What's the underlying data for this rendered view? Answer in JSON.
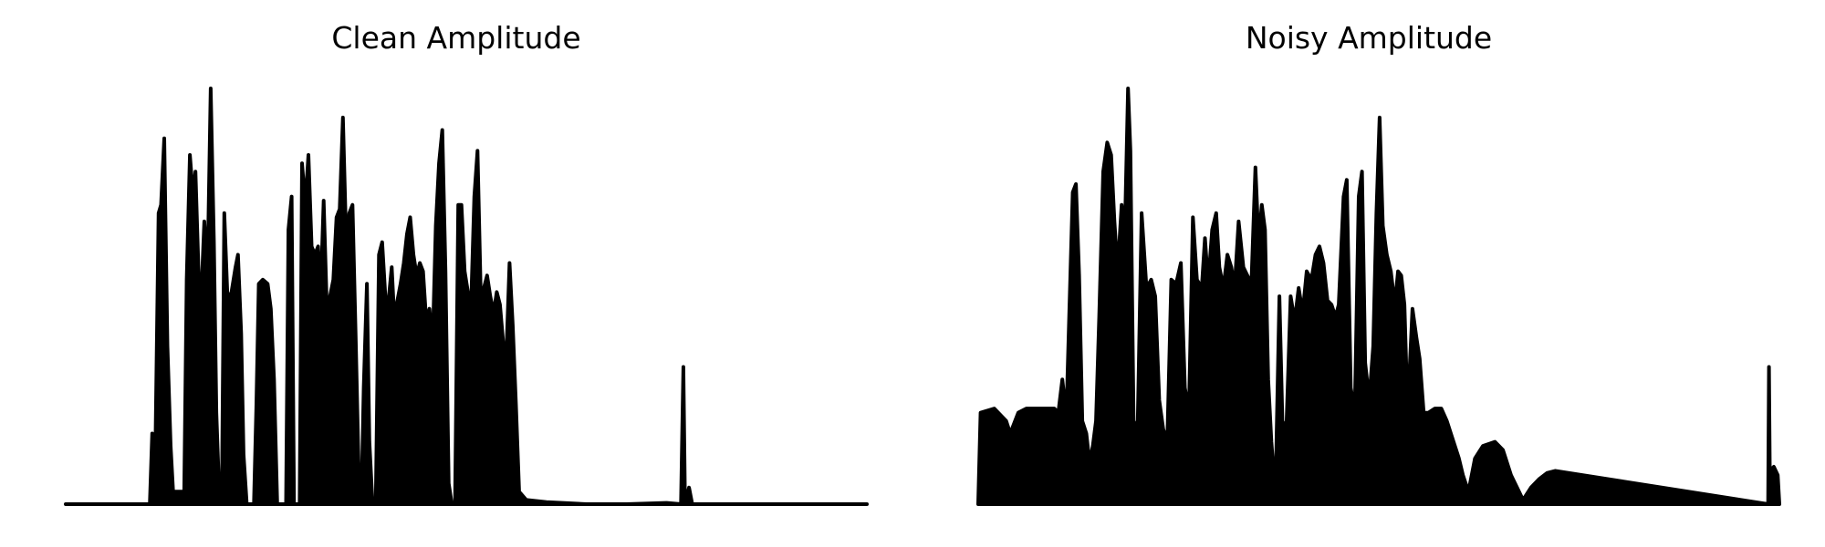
{
  "charts": [
    {
      "title": "Clean Amplitude",
      "chart_data": {
        "type": "area",
        "title": "Clean Amplitude",
        "xlabel": "",
        "ylabel": "",
        "axes_visible": false,
        "grid": false,
        "color": "#000000",
        "x_range": [
          0,
          1
        ],
        "y_range": [
          0,
          1
        ],
        "points": [
          [
            0.0,
            0.0
          ],
          [
            0.105,
            0.0
          ],
          [
            0.108,
            0.17
          ],
          [
            0.111,
            0.0
          ],
          [
            0.116,
            0.7
          ],
          [
            0.119,
            0.72
          ],
          [
            0.123,
            0.88
          ],
          [
            0.127,
            0.38
          ],
          [
            0.131,
            0.14
          ],
          [
            0.134,
            0.03
          ],
          [
            0.148,
            0.03
          ],
          [
            0.151,
            0.54
          ],
          [
            0.155,
            0.84
          ],
          [
            0.159,
            0.74
          ],
          [
            0.162,
            0.8
          ],
          [
            0.166,
            0.55
          ],
          [
            0.17,
            0.54
          ],
          [
            0.173,
            0.68
          ],
          [
            0.177,
            0.55
          ],
          [
            0.181,
            1.0
          ],
          [
            0.185,
            0.63
          ],
          [
            0.188,
            0.22
          ],
          [
            0.192,
            0.0
          ],
          [
            0.195,
            0.03
          ],
          [
            0.198,
            0.7
          ],
          [
            0.202,
            0.49
          ],
          [
            0.207,
            0.51
          ],
          [
            0.212,
            0.57
          ],
          [
            0.215,
            0.6
          ],
          [
            0.219,
            0.41
          ],
          [
            0.222,
            0.12
          ],
          [
            0.226,
            0.0
          ],
          [
            0.235,
            0.0
          ],
          [
            0.238,
            0.24
          ],
          [
            0.241,
            0.53
          ],
          [
            0.246,
            0.54
          ],
          [
            0.252,
            0.53
          ],
          [
            0.256,
            0.47
          ],
          [
            0.26,
            0.3
          ],
          [
            0.264,
            0.0
          ],
          [
            0.275,
            0.0
          ],
          [
            0.278,
            0.66
          ],
          [
            0.282,
            0.74
          ],
          [
            0.285,
            0.0
          ],
          [
            0.292,
            0.0
          ],
          [
            0.295,
            0.82
          ],
          [
            0.299,
            0.72
          ],
          [
            0.303,
            0.84
          ],
          [
            0.307,
            0.62
          ],
          [
            0.311,
            0.6
          ],
          [
            0.315,
            0.62
          ],
          [
            0.318,
            0.49
          ],
          [
            0.322,
            0.73
          ],
          [
            0.326,
            0.47
          ],
          [
            0.33,
            0.5
          ],
          [
            0.334,
            0.54
          ],
          [
            0.338,
            0.69
          ],
          [
            0.342,
            0.71
          ],
          [
            0.346,
            0.93
          ],
          [
            0.35,
            0.64
          ],
          [
            0.354,
            0.7
          ],
          [
            0.358,
            0.72
          ],
          [
            0.362,
            0.4
          ],
          [
            0.366,
            0.06
          ],
          [
            0.369,
            0.0
          ],
          [
            0.372,
            0.28
          ],
          [
            0.376,
            0.53
          ],
          [
            0.379,
            0.15
          ],
          [
            0.383,
            0.0
          ],
          [
            0.387,
            0.0
          ],
          [
            0.391,
            0.6
          ],
          [
            0.395,
            0.63
          ],
          [
            0.399,
            0.5
          ],
          [
            0.403,
            0.49
          ],
          [
            0.407,
            0.57
          ],
          [
            0.41,
            0.45
          ],
          [
            0.414,
            0.49
          ],
          [
            0.418,
            0.53
          ],
          [
            0.422,
            0.58
          ],
          [
            0.426,
            0.65
          ],
          [
            0.43,
            0.69
          ],
          [
            0.434,
            0.6
          ],
          [
            0.438,
            0.55
          ],
          [
            0.442,
            0.58
          ],
          [
            0.446,
            0.56
          ],
          [
            0.45,
            0.44
          ],
          [
            0.454,
            0.47
          ],
          [
            0.458,
            0.38
          ],
          [
            0.462,
            0.67
          ],
          [
            0.466,
            0.82
          ],
          [
            0.47,
            0.9
          ],
          [
            0.474,
            0.56
          ],
          [
            0.478,
            0.05
          ],
          [
            0.482,
            0.0
          ],
          [
            0.486,
            0.0
          ],
          [
            0.49,
            0.72
          ],
          [
            0.494,
            0.72
          ],
          [
            0.498,
            0.56
          ],
          [
            0.502,
            0.51
          ],
          [
            0.506,
            0.48
          ],
          [
            0.51,
            0.74
          ],
          [
            0.514,
            0.85
          ],
          [
            0.518,
            0.51
          ],
          [
            0.522,
            0.52
          ],
          [
            0.526,
            0.55
          ],
          [
            0.53,
            0.5
          ],
          [
            0.534,
            0.46
          ],
          [
            0.538,
            0.51
          ],
          [
            0.542,
            0.48
          ],
          [
            0.546,
            0.39
          ],
          [
            0.55,
            0.36
          ],
          [
            0.554,
            0.58
          ],
          [
            0.558,
            0.43
          ],
          [
            0.562,
            0.24
          ],
          [
            0.566,
            0.03
          ],
          [
            0.575,
            0.01
          ],
          [
            0.6,
            0.005
          ],
          [
            0.65,
            0.0
          ],
          [
            0.7,
            0.0
          ],
          [
            0.75,
            0.003
          ],
          [
            0.768,
            0.0
          ],
          [
            0.771,
            0.33
          ],
          [
            0.773,
            0.0
          ],
          [
            0.778,
            0.04
          ],
          [
            0.782,
            0.0
          ],
          [
            1.0,
            0.0
          ]
        ]
      }
    },
    {
      "title": "Noisy Amplitude",
      "chart_data": {
        "type": "area",
        "title": "Noisy Amplitude",
        "xlabel": "",
        "ylabel": "",
        "axes_visible": false,
        "grid": false,
        "color": "#000000",
        "x_range": [
          0,
          1
        ],
        "y_range": [
          0,
          1
        ],
        "points": [
          [
            0.0,
            0.0
          ],
          [
            0.003,
            0.22
          ],
          [
            0.02,
            0.23
          ],
          [
            0.035,
            0.2
          ],
          [
            0.04,
            0.17
          ],
          [
            0.05,
            0.22
          ],
          [
            0.06,
            0.23
          ],
          [
            0.095,
            0.23
          ],
          [
            0.1,
            0.22
          ],
          [
            0.105,
            0.3
          ],
          [
            0.11,
            0.21
          ],
          [
            0.118,
            0.75
          ],
          [
            0.122,
            0.77
          ],
          [
            0.126,
            0.55
          ],
          [
            0.13,
            0.2
          ],
          [
            0.135,
            0.17
          ],
          [
            0.139,
            0.1
          ],
          [
            0.143,
            0.14
          ],
          [
            0.147,
            0.2
          ],
          [
            0.151,
            0.45
          ],
          [
            0.156,
            0.8
          ],
          [
            0.161,
            0.87
          ],
          [
            0.166,
            0.84
          ],
          [
            0.17,
            0.68
          ],
          [
            0.174,
            0.56
          ],
          [
            0.179,
            0.72
          ],
          [
            0.183,
            0.65
          ],
          [
            0.187,
            1.0
          ],
          [
            0.19,
            0.85
          ],
          [
            0.194,
            0.2
          ],
          [
            0.199,
            0.18
          ],
          [
            0.204,
            0.7
          ],
          [
            0.21,
            0.52
          ],
          [
            0.216,
            0.54
          ],
          [
            0.221,
            0.5
          ],
          [
            0.226,
            0.25
          ],
          [
            0.231,
            0.18
          ],
          [
            0.236,
            0.15
          ],
          [
            0.241,
            0.54
          ],
          [
            0.247,
            0.53
          ],
          [
            0.253,
            0.58
          ],
          [
            0.258,
            0.28
          ],
          [
            0.263,
            0.22
          ],
          [
            0.268,
            0.69
          ],
          [
            0.273,
            0.54
          ],
          [
            0.279,
            0.52
          ],
          [
            0.283,
            0.64
          ],
          [
            0.287,
            0.53
          ],
          [
            0.292,
            0.66
          ],
          [
            0.297,
            0.7
          ],
          [
            0.301,
            0.57
          ],
          [
            0.306,
            0.52
          ],
          [
            0.311,
            0.6
          ],
          [
            0.316,
            0.57
          ],
          [
            0.32,
            0.52
          ],
          [
            0.325,
            0.68
          ],
          [
            0.331,
            0.57
          ],
          [
            0.336,
            0.55
          ],
          [
            0.341,
            0.53
          ],
          [
            0.346,
            0.81
          ],
          [
            0.35,
            0.63
          ],
          [
            0.354,
            0.72
          ],
          [
            0.358,
            0.66
          ],
          [
            0.362,
            0.3
          ],
          [
            0.366,
            0.15
          ],
          [
            0.371,
            0.02
          ],
          [
            0.376,
            0.5
          ],
          [
            0.38,
            0.18
          ],
          [
            0.385,
            0.2
          ],
          [
            0.39,
            0.5
          ],
          [
            0.395,
            0.44
          ],
          [
            0.4,
            0.52
          ],
          [
            0.405,
            0.46
          ],
          [
            0.41,
            0.56
          ],
          [
            0.416,
            0.54
          ],
          [
            0.421,
            0.6
          ],
          [
            0.426,
            0.62
          ],
          [
            0.431,
            0.58
          ],
          [
            0.436,
            0.49
          ],
          [
            0.441,
            0.48
          ],
          [
            0.446,
            0.45
          ],
          [
            0.45,
            0.48
          ],
          [
            0.456,
            0.74
          ],
          [
            0.46,
            0.78
          ],
          [
            0.465,
            0.28
          ],
          [
            0.47,
            0.22
          ],
          [
            0.475,
            0.74
          ],
          [
            0.479,
            0.8
          ],
          [
            0.483,
            0.34
          ],
          [
            0.488,
            0.25
          ],
          [
            0.493,
            0.38
          ],
          [
            0.497,
            0.7
          ],
          [
            0.501,
            0.93
          ],
          [
            0.505,
            0.67
          ],
          [
            0.51,
            0.6
          ],
          [
            0.515,
            0.56
          ],
          [
            0.52,
            0.48
          ],
          [
            0.524,
            0.56
          ],
          [
            0.528,
            0.55
          ],
          [
            0.532,
            0.48
          ],
          [
            0.536,
            0.22
          ],
          [
            0.542,
            0.47
          ],
          [
            0.547,
            0.4
          ],
          [
            0.551,
            0.35
          ],
          [
            0.556,
            0.22
          ],
          [
            0.562,
            0.22
          ],
          [
            0.57,
            0.23
          ],
          [
            0.578,
            0.23
          ],
          [
            0.585,
            0.2
          ],
          [
            0.59,
            0.17
          ],
          [
            0.6,
            0.11
          ],
          [
            0.605,
            0.07
          ],
          [
            0.612,
            0.03
          ],
          [
            0.62,
            0.11
          ],
          [
            0.63,
            0.14
          ],
          [
            0.645,
            0.15
          ],
          [
            0.655,
            0.13
          ],
          [
            0.665,
            0.07
          ],
          [
            0.675,
            0.03
          ],
          [
            0.68,
            0.01
          ],
          [
            0.69,
            0.04
          ],
          [
            0.7,
            0.06
          ],
          [
            0.71,
            0.075
          ],
          [
            0.72,
            0.08
          ],
          [
            0.986,
            0.0
          ],
          [
            0.987,
            0.33
          ],
          [
            0.988,
            0.08
          ],
          [
            0.993,
            0.09
          ],
          [
            0.998,
            0.07
          ],
          [
            1.0,
            0.0
          ]
        ]
      }
    }
  ]
}
